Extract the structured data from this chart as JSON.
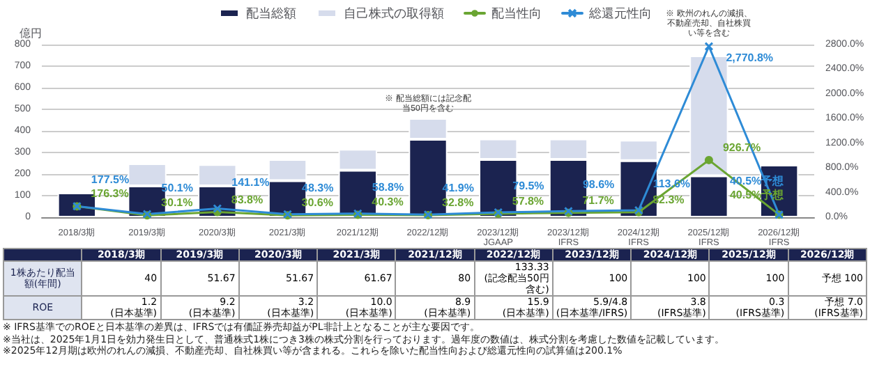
{
  "chart_data": [
    {
      "type": "bar",
      "ylabel": "億円",
      "stacked": true,
      "grid": "y",
      "legend": "top",
      "categories": [
        "2018/3期",
        "2019/3期",
        "2020/3期",
        "2021/3期",
        "2021/12期",
        "2022/12期",
        "2023/12期 JGAAP",
        "2023/12期 IFRS",
        "2024/12期 IFRS",
        "2025/12期 IFRS",
        "2026/12期 IFRS"
      ],
      "ylim": [
        0,
        800
      ],
      "yticks": [
        0,
        100,
        200,
        300,
        400,
        500,
        600,
        700,
        800
      ],
      "y2lim": [
        0,
        2800
      ],
      "y2ticks": [
        {
          "value": 0,
          "label": "0.0%"
        },
        {
          "value": 400,
          "label": "400.0%"
        },
        {
          "value": 800,
          "label": "800.0%"
        },
        {
          "value": 1200,
          "label": "1200.0%"
        },
        {
          "value": 1600,
          "label": "1600.0%"
        },
        {
          "value": 2000,
          "label": "2000.0%"
        },
        {
          "value": 2400,
          "label": "2400.0%"
        },
        {
          "value": 2800,
          "label": "2800.0%"
        }
      ],
      "series": [
        {
          "name": "配当総額",
          "type": "bar",
          "color": "#1b2350",
          "values": [
            113,
            145,
            145,
            169,
            218,
            361,
            268,
            268,
            262,
            192,
            242
          ]
        },
        {
          "name": "自己株式の取得額",
          "type": "bar",
          "color": "#d6dcec",
          "values": [
            null,
            103,
            99,
            99,
            97,
            97,
            95,
            95,
            95,
            556,
            null
          ]
        },
        {
          "name": "配当性向",
          "type": "line",
          "axis": "y2",
          "marker": "circle",
          "color": "#6aa532",
          "values": [
            176.3,
            30.1,
            83.8,
            30.6,
            40.3,
            32.8,
            57.8,
            71.7,
            82.3,
            926.7,
            40.5
          ],
          "value_labels": [
            "176.3%",
            "30.1%",
            "83.8%",
            "30.6%",
            "40.3%",
            "32.8%",
            "57.8%",
            "71.7%",
            "82.3%",
            "926.7%",
            "40.5%予想"
          ]
        },
        {
          "name": "総還元性向",
          "type": "line",
          "axis": "y2",
          "marker": "cross",
          "color": "#2e8bd6",
          "values": [
            177.5,
            50.1,
            141.1,
            48.3,
            58.8,
            41.9,
            79.5,
            98.6,
            113.6,
            2770.8,
            40.5
          ],
          "value_labels": [
            "177.5%",
            "50.1%",
            "141.1%",
            "48.3%",
            "58.8%",
            "41.9%",
            "79.5%",
            "98.6%",
            "113.6%",
            "2,770.8%",
            "40.5%予想"
          ]
        }
      ],
      "annotations": [
        {
          "text": "※ 配当総額には記念配当50円を含む",
          "x": "2022/12期",
          "y": 458
        },
        {
          "text": "※ 欧州のれんの減損、不動産売却、自社株買い等を含む",
          "x": "2025/12期 IFRS",
          "y": 748
        }
      ]
    },
    {
      "type": "other",
      "categories": [
        "2018/3期",
        "2019/3期",
        "2020/3期",
        "2021/3期",
        "2021/12期",
        "2022/12期",
        "2023/12期",
        "2024/12期",
        "2025/12期",
        "2026/12期"
      ],
      "y_categories": [
        "1株あたり配当額(年間)",
        "ROE"
      ],
      "cell_labels": [
        [
          "40",
          "51.67",
          "51.67",
          "61.67",
          "80",
          "133.33\n(記念配当50円含む)",
          "100",
          "100",
          "100",
          "予想 100"
        ],
        [
          "1.2\n(日本基準)",
          "9.2\n(日本基準)",
          "3.2\n(日本基準)",
          "10.0\n(日本基準)",
          "8.9\n(日本基準)",
          "15.9\n(日本基準)",
          "5.9/4.8\n(日本基準/IFRS)",
          "3.8\n(IFRS基準)",
          "0.3\n(IFRS基準)",
          "予想 7.0\n(IFRS基準)"
        ]
      ],
      "annotations": [
        "※ IFRS基準でのROEと日本基準の差異は、IFRSでは有価証券売却益がPL非計上となることが主な要因です。",
        "※当社は、2025年1月1日を効力発生日として、普通株式1株につき3株の株式分割を行っております。過年度の数値は、株式分割を考慮した数値を記載しています。",
        "※2025年12月期は欧州のれんの減損、不動産売却、自社株買い等が含まれる。これらを除いた配当性向および総還元性向の試算値は200.1%"
      ]
    }
  ]
}
